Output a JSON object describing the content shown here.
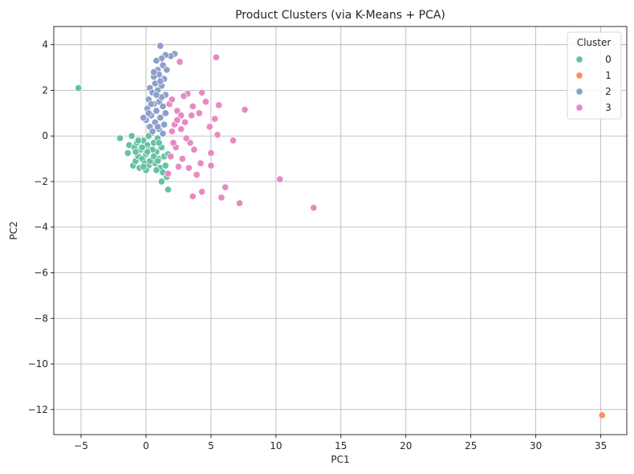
{
  "chart_data": {
    "type": "scatter",
    "title": "Product Clusters (via K-Means + PCA)",
    "xlabel": "PC1",
    "ylabel": "PC2",
    "xlim": [
      -7.1,
      37.0
    ],
    "ylim": [
      -13.1,
      4.8
    ],
    "xticks": [
      -5,
      0,
      5,
      10,
      15,
      20,
      25,
      30,
      35
    ],
    "yticks": [
      -12,
      -10,
      -8,
      -6,
      -4,
      -2,
      0,
      2,
      4
    ],
    "grid": true,
    "legend": {
      "title": "Cluster",
      "placement": "top-right"
    },
    "series": [
      {
        "name": "0",
        "color": "#66c2a5",
        "points": [
          [
            -5.2,
            2.1
          ],
          [
            -2.0,
            -0.1
          ],
          [
            -1.3,
            -0.4
          ],
          [
            -1.4,
            -0.75
          ],
          [
            -1.1,
            0.0
          ],
          [
            -0.9,
            -0.5
          ],
          [
            -1.0,
            -1.3
          ],
          [
            -0.8,
            -1.1
          ],
          [
            -0.6,
            -0.9
          ],
          [
            -0.7,
            -0.3
          ],
          [
            -0.5,
            -1.4
          ],
          [
            -0.4,
            -0.6
          ],
          [
            -0.3,
            -1.0
          ],
          [
            -0.2,
            -0.2
          ],
          [
            -0.1,
            -1.2
          ],
          [
            0.0,
            -0.8
          ],
          [
            0.1,
            -0.4
          ],
          [
            0.2,
            -1.3
          ],
          [
            0.3,
            -0.6
          ],
          [
            0.4,
            0.1
          ],
          [
            0.5,
            -1.0
          ],
          [
            0.6,
            -0.3
          ],
          [
            0.7,
            -1.2
          ],
          [
            0.8,
            -0.7
          ],
          [
            0.9,
            -0.1
          ],
          [
            1.0,
            -1.0
          ],
          [
            1.1,
            -1.4
          ],
          [
            1.2,
            -0.5
          ],
          [
            1.3,
            -1.6
          ],
          [
            1.4,
            -0.9
          ],
          [
            1.5,
            -1.3
          ],
          [
            1.6,
            -1.8
          ],
          [
            1.7,
            -0.8
          ],
          [
            1.2,
            -2.0
          ],
          [
            1.7,
            -2.35
          ],
          [
            0.0,
            -1.5
          ],
          [
            -0.3,
            -0.5
          ],
          [
            0.2,
            0.0
          ],
          [
            0.5,
            -0.6
          ],
          [
            0.8,
            -1.5
          ],
          [
            0.3,
            -1.1
          ],
          [
            -0.6,
            -0.2
          ],
          [
            0.6,
            -0.9
          ],
          [
            1.0,
            -0.3
          ],
          [
            -0.2,
            -1.35
          ],
          [
            0.9,
            -1.1
          ],
          [
            0.1,
            -0.7
          ],
          [
            -0.8,
            -0.7
          ]
        ]
      },
      {
        "name": "1",
        "color": "#fc8d62",
        "points": [
          [
            35.1,
            -12.25
          ]
        ]
      },
      {
        "name": "2",
        "color": "#8da0cb",
        "points": [
          [
            1.1,
            3.95
          ],
          [
            2.2,
            3.6
          ],
          [
            1.9,
            3.5
          ],
          [
            1.5,
            3.55
          ],
          [
            1.2,
            3.4
          ],
          [
            0.8,
            3.3
          ],
          [
            1.3,
            3.1
          ],
          [
            0.9,
            2.9
          ],
          [
            1.0,
            2.7
          ],
          [
            0.6,
            2.6
          ],
          [
            1.4,
            2.5
          ],
          [
            0.7,
            2.3
          ],
          [
            1.2,
            2.2
          ],
          [
            0.3,
            2.1
          ],
          [
            0.9,
            2.0
          ],
          [
            0.5,
            1.9
          ],
          [
            1.5,
            1.8
          ],
          [
            0.2,
            1.6
          ],
          [
            1.0,
            1.5
          ],
          [
            0.6,
            1.4
          ],
          [
            1.3,
            1.3
          ],
          [
            0.1,
            1.2
          ],
          [
            0.8,
            1.1
          ],
          [
            1.5,
            1.0
          ],
          [
            0.4,
            0.9
          ],
          [
            1.1,
            0.8
          ],
          [
            0.0,
            0.7
          ],
          [
            0.7,
            0.6
          ],
          [
            1.4,
            0.5
          ],
          [
            0.3,
            0.4
          ],
          [
            1.0,
            0.3
          ],
          [
            0.5,
            0.2
          ],
          [
            -0.2,
            0.8
          ],
          [
            0.2,
            1.0
          ],
          [
            1.2,
            1.7
          ],
          [
            0.6,
            2.8
          ],
          [
            1.6,
            2.9
          ],
          [
            1.3,
            0.1
          ],
          [
            0.9,
            0.4
          ],
          [
            0.4,
            1.4
          ],
          [
            1.1,
            2.4
          ],
          [
            0.8,
            1.8
          ]
        ]
      },
      {
        "name": "3",
        "color": "#e78ac3",
        "points": [
          [
            2.6,
            3.25
          ],
          [
            5.4,
            3.45
          ],
          [
            4.3,
            1.9
          ],
          [
            3.2,
            1.85
          ],
          [
            2.9,
            1.75
          ],
          [
            4.6,
            1.5
          ],
          [
            5.6,
            1.35
          ],
          [
            7.6,
            1.15
          ],
          [
            3.6,
            1.3
          ],
          [
            4.1,
            1.0
          ],
          [
            5.3,
            0.75
          ],
          [
            2.4,
            1.1
          ],
          [
            2.7,
            0.9
          ],
          [
            3.0,
            0.6
          ],
          [
            2.2,
            0.5
          ],
          [
            4.9,
            0.4
          ],
          [
            5.5,
            0.05
          ],
          [
            6.7,
            -0.2
          ],
          [
            3.4,
            -0.3
          ],
          [
            3.7,
            -0.6
          ],
          [
            5.0,
            -0.75
          ],
          [
            2.3,
            -0.5
          ],
          [
            1.9,
            -0.9
          ],
          [
            2.8,
            -1.0
          ],
          [
            4.2,
            -1.2
          ],
          [
            2.5,
            -1.35
          ],
          [
            3.3,
            -1.4
          ],
          [
            3.9,
            -1.7
          ],
          [
            5.0,
            -1.3
          ],
          [
            1.7,
            -1.65
          ],
          [
            6.1,
            -2.25
          ],
          [
            5.8,
            -2.7
          ],
          [
            4.3,
            -2.45
          ],
          [
            3.6,
            -2.65
          ],
          [
            7.2,
            -2.95
          ],
          [
            10.3,
            -1.9
          ],
          [
            12.9,
            -3.15
          ],
          [
            2.0,
            0.2
          ],
          [
            2.7,
            0.3
          ],
          [
            3.1,
            -0.1
          ],
          [
            1.8,
            1.4
          ],
          [
            2.1,
            -0.3
          ],
          [
            2.4,
            0.7
          ],
          [
            3.5,
            0.9
          ],
          [
            2.0,
            1.6
          ]
        ]
      }
    ]
  }
}
